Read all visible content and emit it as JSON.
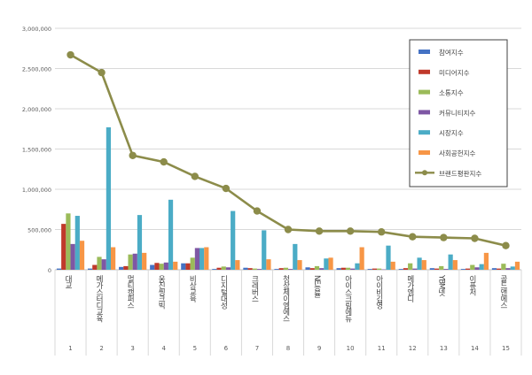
{
  "chart_data": {
    "type": "bar+line",
    "title": "",
    "xlabel": "",
    "ylabel": "",
    "ylim": [
      0,
      3000000
    ],
    "yticks": [
      0,
      500000,
      1000000,
      1500000,
      2000000,
      2500000,
      3000000
    ],
    "ytick_labels": [
      "0",
      "500,000",
      "1,000,000",
      "1,500,000",
      "2,000,000",
      "2,500,000",
      "3,000,000"
    ],
    "grid": true,
    "legend_position": "top-right",
    "categories": [
      "대교",
      "메가스터디교육",
      "멀티캠퍼스",
      "웅진씽크빅",
      "비상교육",
      "디지털대성",
      "크레버스",
      "청상제이엠에스",
      "NE능률",
      "아이스크림에듀",
      "아이비김영",
      "메가엠디",
      "YBM넷",
      "이퓨처",
      "골드앤에스"
    ],
    "ranks": [
      "1",
      "2",
      "3",
      "4",
      "5",
      "6",
      "7",
      "8",
      "9",
      "10",
      "11",
      "12",
      "13",
      "14",
      "15"
    ],
    "series": [
      {
        "name": "참여지수",
        "kind": "bar",
        "color": "#4472C4",
        "values": [
          15000,
          15000,
          35000,
          60000,
          80000,
          10000,
          25000,
          10000,
          30000,
          20000,
          10000,
          10000,
          20000,
          10000,
          20000
        ]
      },
      {
        "name": "미디어지수",
        "kind": "bar",
        "color": "#C0392B",
        "values": [
          570000,
          60000,
          45000,
          85000,
          80000,
          25000,
          20000,
          20000,
          20000,
          25000,
          15000,
          20000,
          15000,
          15000,
          15000
        ]
      },
      {
        "name": "소통지수",
        "kind": "bar",
        "color": "#9BBB59",
        "values": [
          700000,
          160000,
          190000,
          75000,
          150000,
          40000,
          15000,
          25000,
          45000,
          25000,
          15000,
          80000,
          45000,
          60000,
          75000
        ]
      },
      {
        "name": "커뮤니티지수",
        "kind": "bar",
        "color": "#7E57A4",
        "values": [
          320000,
          130000,
          200000,
          90000,
          270000,
          30000,
          10000,
          10000,
          20000,
          15000,
          5000,
          15000,
          10000,
          30000,
          20000
        ]
      },
      {
        "name": "시장지수",
        "kind": "bar",
        "color": "#4BACC6",
        "values": [
          670000,
          1770000,
          680000,
          870000,
          270000,
          730000,
          490000,
          320000,
          140000,
          80000,
          300000,
          150000,
          190000,
          70000,
          40000
        ]
      },
      {
        "name": "사회공헌지수",
        "kind": "bar",
        "color": "#F79646",
        "values": [
          360000,
          280000,
          210000,
          100000,
          280000,
          120000,
          130000,
          120000,
          150000,
          280000,
          100000,
          120000,
          120000,
          210000,
          100000
        ]
      },
      {
        "name": "브랜드평판지수",
        "kind": "line",
        "color": "#8C8C4A",
        "values": [
          2670000,
          2450000,
          1420000,
          1340000,
          1160000,
          1010000,
          730000,
          500000,
          480000,
          480000,
          470000,
          410000,
          400000,
          390000,
          300000
        ]
      }
    ]
  }
}
